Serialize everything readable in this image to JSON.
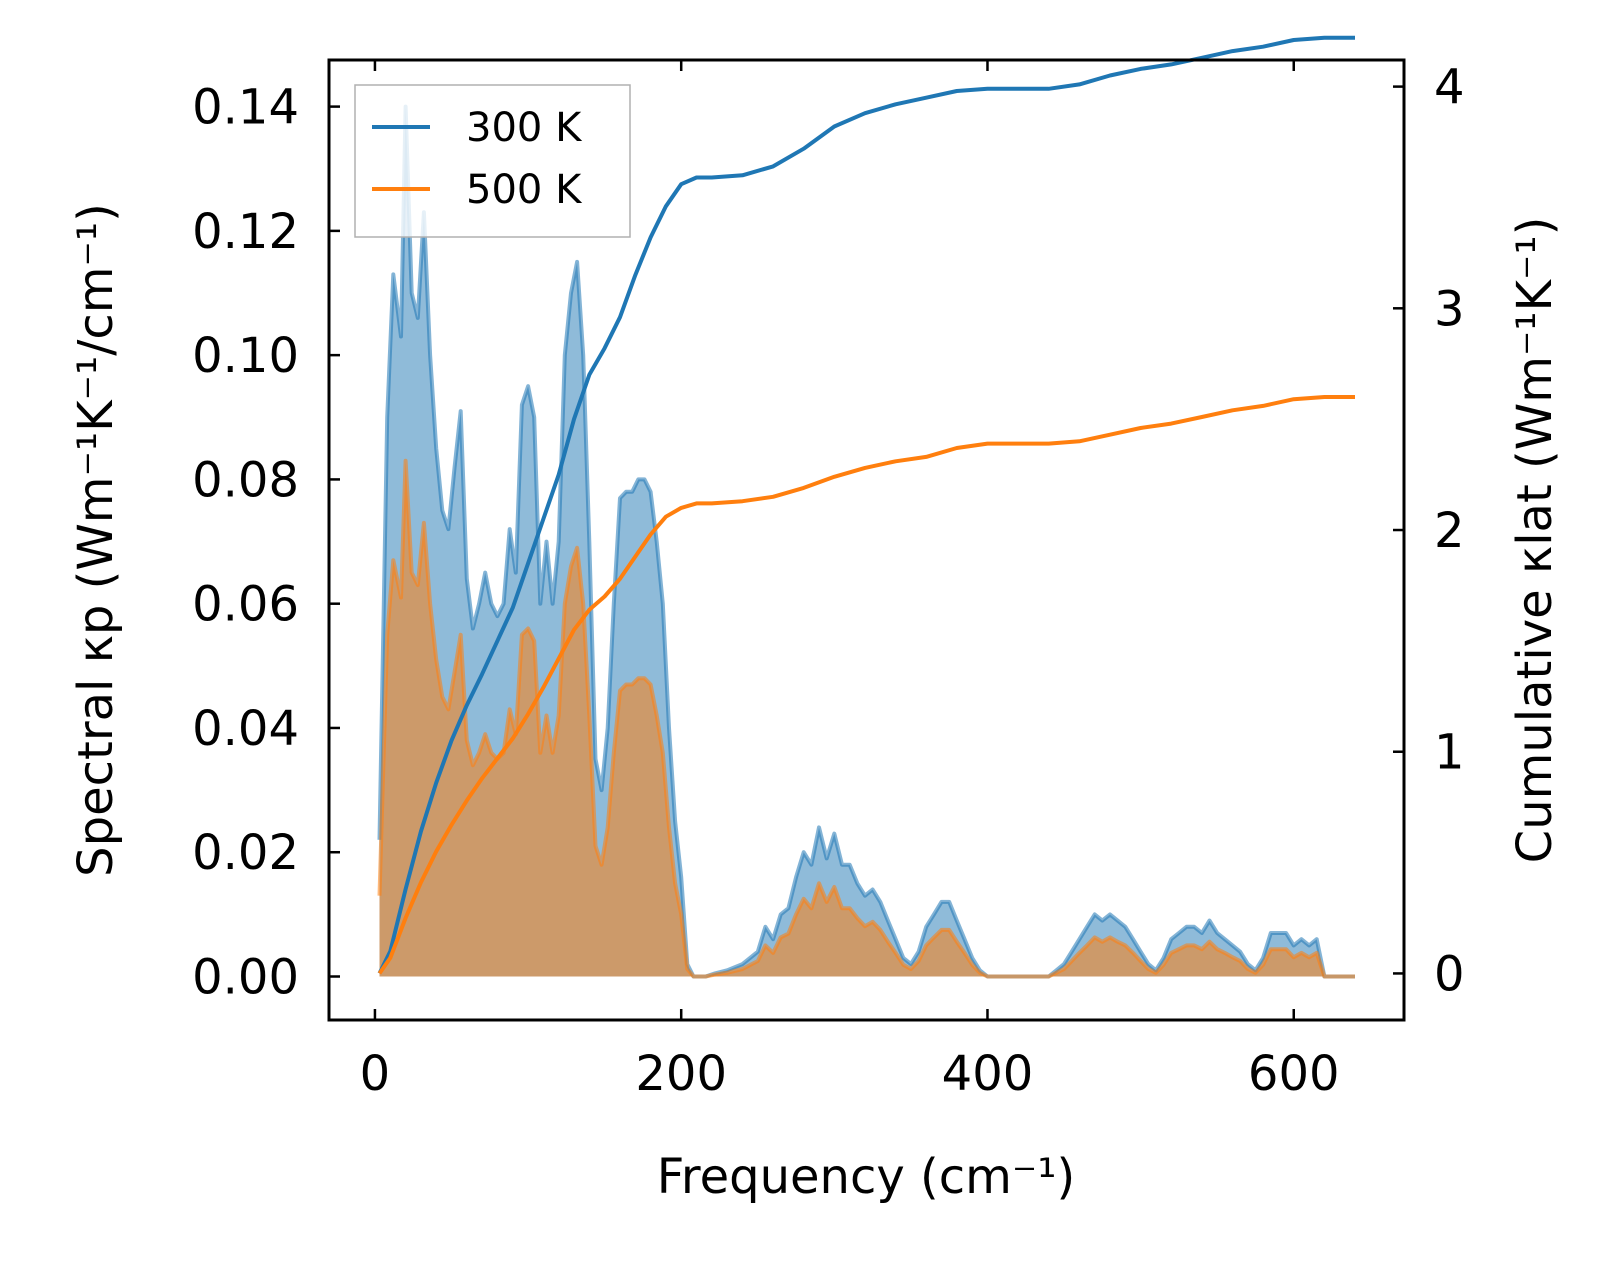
{
  "chart_data": {
    "type": "area",
    "xlabel": "Frequency (cm⁻¹)",
    "ylabel_left": "Spectral κp (Wm⁻¹K⁻¹/cm⁻¹)",
    "ylabel_right": "Cumulative κlat (Wm⁻¹K⁻¹)",
    "xlim": [
      -30,
      672
    ],
    "ylim_left": [
      -0.007,
      0.1475
    ],
    "ylim_right": [
      -0.21,
      4.12
    ],
    "x_ticks": [
      "0",
      "200",
      "400",
      "600"
    ],
    "x_tick_values": [
      0,
      200,
      400,
      600
    ],
    "y_left_ticks": [
      "0.00",
      "0.02",
      "0.04",
      "0.06",
      "0.08",
      "0.10",
      "0.12",
      "0.14"
    ],
    "y_left_tick_values": [
      0,
      0.02,
      0.04,
      0.06,
      0.08,
      0.1,
      0.12,
      0.14
    ],
    "y_right_ticks": [
      "0",
      "1",
      "2",
      "3",
      "4"
    ],
    "y_right_tick_values": [
      0,
      1,
      2,
      3,
      4
    ],
    "legend": {
      "position": "top-left",
      "entries": [
        "300 K",
        "500 K"
      ]
    },
    "colors": {
      "300K": "#1f77b4",
      "500K": "#ff7f0e"
    },
    "series": [
      {
        "name": "300 K",
        "axis": "left",
        "kind": "spectral",
        "x": [
          3,
          8,
          12,
          17,
          20,
          24,
          28,
          32,
          36,
          40,
          44,
          48,
          52,
          56,
          60,
          64,
          68,
          72,
          76,
          80,
          84,
          88,
          92,
          96,
          100,
          104,
          108,
          112,
          116,
          120,
          124,
          128,
          132,
          136,
          140,
          144,
          148,
          152,
          156,
          160,
          164,
          168,
          172,
          176,
          180,
          184,
          188,
          192,
          196,
          200,
          204,
          208,
          212,
          216,
          222,
          230,
          240,
          250,
          255,
          260,
          265,
          270,
          275,
          280,
          285,
          290,
          295,
          300,
          305,
          310,
          315,
          320,
          325,
          330,
          335,
          340,
          345,
          350,
          355,
          360,
          365,
          370,
          375,
          380,
          385,
          390,
          395,
          400,
          410,
          420,
          430,
          440,
          445,
          450,
          455,
          460,
          465,
          470,
          475,
          480,
          485,
          490,
          495,
          500,
          505,
          510,
          515,
          520,
          525,
          530,
          535,
          540,
          545,
          550,
          555,
          560,
          565,
          570,
          575,
          580,
          585,
          590,
          595,
          600,
          605,
          610,
          615,
          620,
          640
        ],
        "values": [
          0.022,
          0.09,
          0.113,
          0.103,
          0.14,
          0.11,
          0.106,
          0.123,
          0.1,
          0.085,
          0.075,
          0.072,
          0.082,
          0.091,
          0.064,
          0.056,
          0.06,
          0.065,
          0.06,
          0.058,
          0.06,
          0.072,
          0.065,
          0.092,
          0.095,
          0.09,
          0.06,
          0.07,
          0.06,
          0.07,
          0.1,
          0.11,
          0.115,
          0.1,
          0.07,
          0.035,
          0.03,
          0.04,
          0.06,
          0.077,
          0.078,
          0.078,
          0.08,
          0.08,
          0.078,
          0.07,
          0.06,
          0.04,
          0.025,
          0.016,
          0.002,
          0.0,
          0.0,
          0.0,
          0.0005,
          0.001,
          0.002,
          0.004,
          0.008,
          0.006,
          0.01,
          0.011,
          0.016,
          0.02,
          0.018,
          0.024,
          0.019,
          0.023,
          0.018,
          0.018,
          0.015,
          0.013,
          0.014,
          0.012,
          0.009,
          0.006,
          0.003,
          0.002,
          0.004,
          0.008,
          0.01,
          0.012,
          0.012,
          0.009,
          0.006,
          0.003,
          0.001,
          0.0,
          0.0,
          0.0,
          0.0,
          0.0,
          0.001,
          0.002,
          0.004,
          0.006,
          0.008,
          0.01,
          0.009,
          0.01,
          0.009,
          0.008,
          0.006,
          0.004,
          0.002,
          0.001,
          0.003,
          0.006,
          0.007,
          0.008,
          0.008,
          0.007,
          0.009,
          0.007,
          0.006,
          0.005,
          0.004,
          0.002,
          0.001,
          0.003,
          0.007,
          0.007,
          0.007,
          0.005,
          0.006,
          0.005,
          0.006,
          0.0,
          0.0
        ]
      },
      {
        "name": "500 K",
        "axis": "left",
        "kind": "spectral",
        "x": [
          3,
          8,
          12,
          17,
          20,
          24,
          28,
          32,
          36,
          40,
          44,
          48,
          52,
          56,
          60,
          64,
          68,
          72,
          76,
          80,
          84,
          88,
          92,
          96,
          100,
          104,
          108,
          112,
          116,
          120,
          124,
          128,
          132,
          136,
          140,
          144,
          148,
          152,
          156,
          160,
          164,
          168,
          172,
          176,
          180,
          184,
          188,
          192,
          196,
          200,
          204,
          208,
          212,
          216,
          222,
          230,
          240,
          250,
          255,
          260,
          265,
          270,
          275,
          280,
          285,
          290,
          295,
          300,
          305,
          310,
          315,
          320,
          325,
          330,
          335,
          340,
          345,
          350,
          355,
          360,
          365,
          370,
          375,
          380,
          385,
          390,
          395,
          400,
          410,
          420,
          430,
          440,
          445,
          450,
          455,
          460,
          465,
          470,
          475,
          480,
          485,
          490,
          495,
          500,
          505,
          510,
          515,
          520,
          525,
          530,
          535,
          540,
          545,
          550,
          555,
          560,
          565,
          570,
          575,
          580,
          585,
          590,
          595,
          600,
          605,
          610,
          615,
          620,
          640
        ],
        "values": [
          0.013,
          0.055,
          0.067,
          0.061,
          0.083,
          0.065,
          0.063,
          0.073,
          0.06,
          0.051,
          0.045,
          0.043,
          0.049,
          0.055,
          0.038,
          0.034,
          0.036,
          0.039,
          0.036,
          0.035,
          0.036,
          0.043,
          0.039,
          0.055,
          0.056,
          0.054,
          0.036,
          0.042,
          0.036,
          0.042,
          0.06,
          0.066,
          0.069,
          0.06,
          0.042,
          0.021,
          0.018,
          0.024,
          0.036,
          0.046,
          0.047,
          0.047,
          0.048,
          0.048,
          0.047,
          0.042,
          0.036,
          0.024,
          0.015,
          0.01,
          0.0012,
          0.0,
          0.0,
          0.0,
          0.0003,
          0.0006,
          0.0012,
          0.0025,
          0.005,
          0.0038,
          0.0063,
          0.0069,
          0.01,
          0.0125,
          0.011,
          0.015,
          0.012,
          0.0144,
          0.011,
          0.011,
          0.0094,
          0.0081,
          0.0088,
          0.0075,
          0.0056,
          0.0038,
          0.0019,
          0.0012,
          0.0025,
          0.005,
          0.0063,
          0.0075,
          0.0075,
          0.0056,
          0.0038,
          0.0019,
          0.0006,
          0.0,
          0.0,
          0.0,
          0.0,
          0.0,
          0.0006,
          0.0012,
          0.0025,
          0.0038,
          0.005,
          0.0063,
          0.0056,
          0.0063,
          0.0056,
          0.005,
          0.0038,
          0.0025,
          0.0012,
          0.0006,
          0.0019,
          0.0038,
          0.0044,
          0.005,
          0.005,
          0.0044,
          0.0056,
          0.0044,
          0.0038,
          0.0031,
          0.0025,
          0.0012,
          0.0006,
          0.0019,
          0.0044,
          0.0044,
          0.0044,
          0.0031,
          0.0038,
          0.0031,
          0.0038,
          0.0,
          0.0
        ]
      },
      {
        "name": "300 K",
        "axis": "right",
        "kind": "cumulative",
        "x": [
          3,
          10,
          20,
          30,
          40,
          50,
          60,
          70,
          80,
          90,
          100,
          110,
          120,
          130,
          140,
          150,
          160,
          170,
          180,
          190,
          200,
          210,
          220,
          240,
          260,
          280,
          300,
          320,
          340,
          360,
          380,
          400,
          420,
          440,
          460,
          480,
          500,
          520,
          540,
          560,
          580,
          600,
          620,
          640
        ],
        "values": [
          0.0,
          0.1,
          0.38,
          0.64,
          0.86,
          1.05,
          1.21,
          1.35,
          1.5,
          1.65,
          1.85,
          2.05,
          2.25,
          2.5,
          2.7,
          2.82,
          2.96,
          3.15,
          3.32,
          3.46,
          3.56,
          3.59,
          3.59,
          3.6,
          3.64,
          3.72,
          3.82,
          3.88,
          3.92,
          3.95,
          3.98,
          3.99,
          3.99,
          3.99,
          4.01,
          4.05,
          4.08,
          4.1,
          4.13,
          4.16,
          4.18,
          4.21,
          4.22,
          4.22
        ]
      },
      {
        "name": "500 K",
        "axis": "right",
        "kind": "cumulative",
        "x": [
          3,
          10,
          20,
          30,
          40,
          50,
          60,
          70,
          80,
          90,
          100,
          110,
          120,
          130,
          140,
          150,
          160,
          170,
          180,
          190,
          200,
          210,
          220,
          240,
          260,
          280,
          300,
          320,
          340,
          360,
          380,
          400,
          420,
          440,
          460,
          480,
          500,
          520,
          540,
          560,
          580,
          600,
          620,
          640
        ],
        "values": [
          0.0,
          0.07,
          0.25,
          0.41,
          0.55,
          0.67,
          0.78,
          0.88,
          0.97,
          1.06,
          1.17,
          1.29,
          1.42,
          1.55,
          1.64,
          1.7,
          1.78,
          1.88,
          1.98,
          2.06,
          2.1,
          2.12,
          2.12,
          2.13,
          2.15,
          2.19,
          2.24,
          2.28,
          2.31,
          2.33,
          2.37,
          2.39,
          2.39,
          2.39,
          2.4,
          2.43,
          2.46,
          2.48,
          2.51,
          2.54,
          2.56,
          2.59,
          2.6,
          2.6
        ]
      }
    ]
  }
}
